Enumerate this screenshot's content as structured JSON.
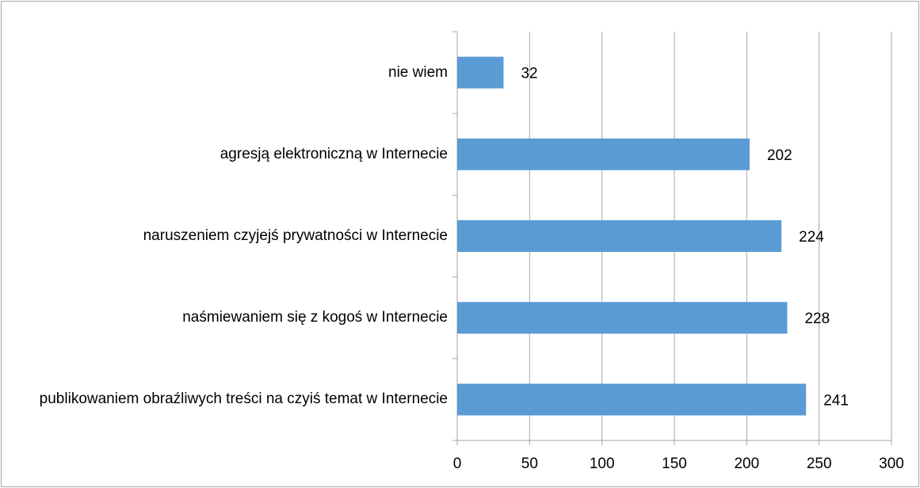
{
  "chart_data": {
    "type": "bar",
    "orientation": "horizontal",
    "categories": [
      "nie wiem",
      "agresją elektroniczną w Internecie",
      "naruszeniem czyjejś prywatności w Internecie",
      "naśmiewaniem się z kogoś w Internecie",
      "publikowaniem obraźliwych treści na czyiś temat w Internecie"
    ],
    "values": [
      32,
      202,
      224,
      228,
      241
    ],
    "color": "#5b9bd5",
    "xlim": [
      0,
      300
    ],
    "xticks": [
      0,
      50,
      100,
      150,
      200,
      250,
      300
    ],
    "grid": true
  }
}
